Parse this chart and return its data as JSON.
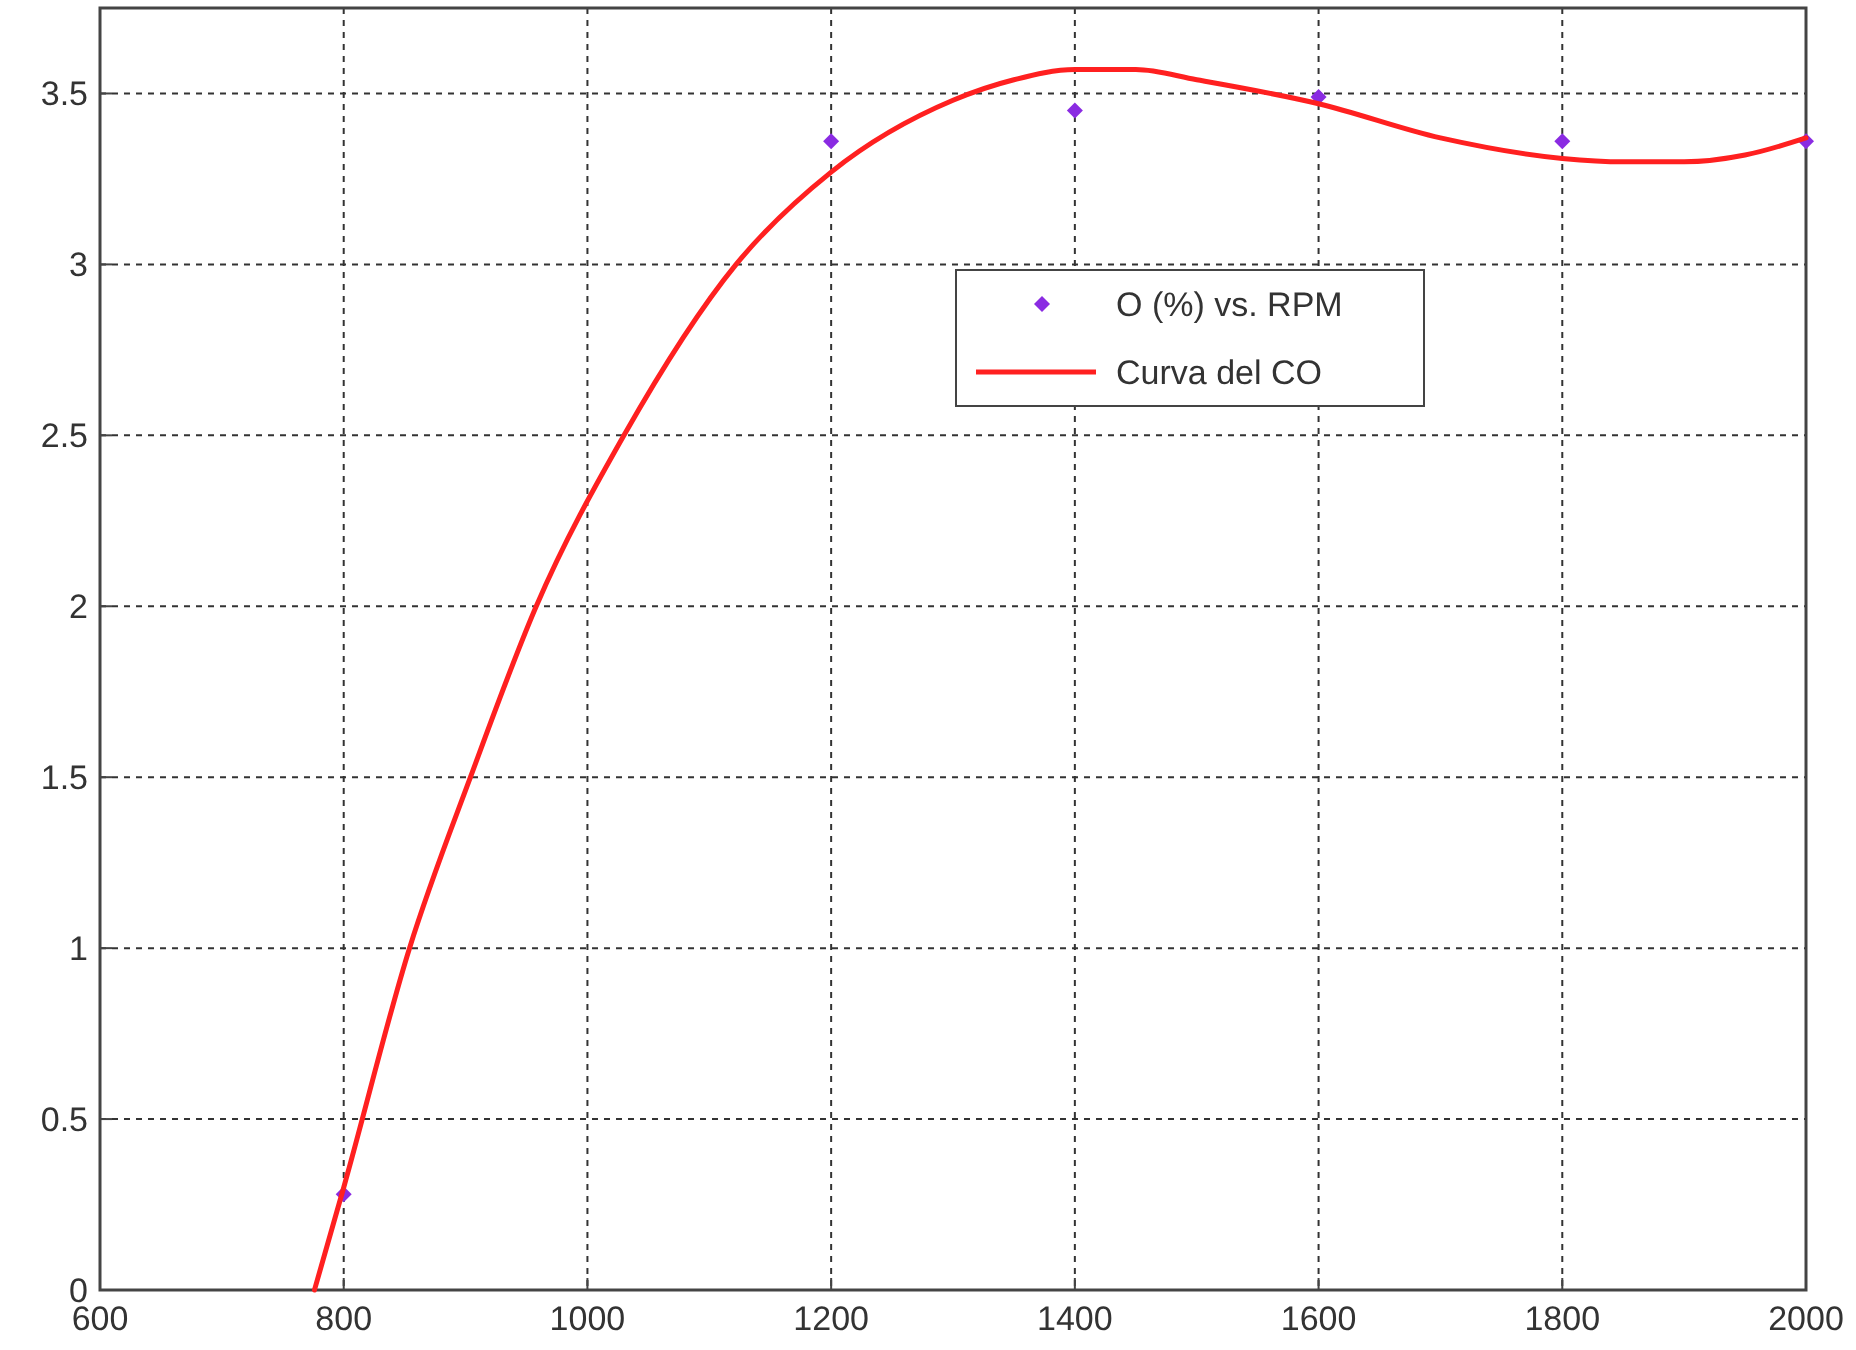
{
  "chart_data": {
    "type": "scatter",
    "xlim": [
      600,
      2000
    ],
    "ylim": [
      0,
      3.75
    ],
    "xticks": [
      600,
      800,
      1000,
      1200,
      1400,
      1600,
      1800,
      2000
    ],
    "yticks": [
      0,
      0.5,
      1,
      1.5,
      2,
      2.5,
      3,
      3.5
    ],
    "grid": true,
    "legend": "top right",
    "series": [
      {
        "name": "O (%) vs. RPM",
        "color": "#8a2be2",
        "marker": "diamond",
        "x": [
          800,
          1200,
          1400,
          1600,
          1800,
          2000
        ],
        "values": [
          0.28,
          3.36,
          3.45,
          3.49,
          3.36,
          3.36
        ]
      },
      {
        "name": "Curva del CO",
        "type": "line",
        "color": "#ff2020",
        "marker": "none",
        "line_style": "solid",
        "x": [
          776,
          800,
          854,
          904,
          958,
          1030,
          1122,
          1200,
          1300,
          1350,
          1400,
          1450,
          1500,
          1600,
          1700,
          1800,
          1850,
          1900,
          1950,
          2000
        ],
        "values": [
          0,
          0.3,
          1,
          1.5,
          2,
          2.5,
          3,
          3.27,
          3.48,
          3.54,
          3.57,
          3.57,
          3.54,
          3.47,
          3.37,
          3.31,
          3.3,
          3.3,
          3.32,
          3.37
        ]
      }
    ]
  }
}
